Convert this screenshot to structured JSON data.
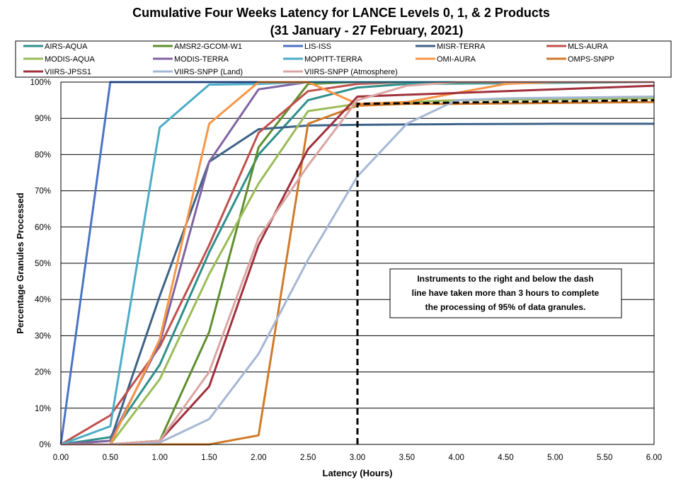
{
  "chart_data": {
    "type": "line",
    "title": "Cumulative Four Weeks Latency  for LANCE Levels 0, 1, & 2 Products",
    "subtitle": "(31 January  -  27 February,  2021)",
    "xlabel": "Latency (Hours)",
    "ylabel": "Percentage Granules Processed",
    "xlim": [
      0,
      6
    ],
    "ylim": [
      0,
      100
    ],
    "x_ticks": [
      "0.00",
      "0.50",
      "1.00",
      "1.50",
      "2.00",
      "2.50",
      "3.00",
      "3.50",
      "4.00",
      "4.50",
      "5.00",
      "5.50",
      "6.00"
    ],
    "y_ticks": [
      "0%",
      "10%",
      "20%",
      "30%",
      "40%",
      "50%",
      "60%",
      "70%",
      "80%",
      "90%",
      "100%"
    ],
    "grid": "horizontal",
    "legend_position": "top",
    "annotation": [
      "Instruments to the right and below the dash",
      "line have taken more than 3 hours to complete",
      "the processing of 95% of data granules."
    ],
    "threshold_line": {
      "x": 3.0,
      "y": 94,
      "x_end": 6.0,
      "y_end": 95,
      "style": "dashed"
    },
    "series": [
      {
        "name": "AIRS-AQUA",
        "color": "#2e8f8a",
        "x": [
          0,
          0.5,
          1,
          1.5,
          2,
          2.5,
          3,
          3.5,
          6
        ],
        "y": [
          0,
          2,
          22,
          53,
          80,
          95,
          98.5,
          99.5,
          100
        ]
      },
      {
        "name": "AMSR2-GCOM-W1",
        "color": "#5f8f2e",
        "x": [
          0,
          0.5,
          1,
          1.5,
          2,
          2.5,
          3,
          3.5,
          6
        ],
        "y": [
          0,
          0,
          1,
          31,
          82,
          99.5,
          100,
          100,
          100
        ]
      },
      {
        "name": "LIS-ISS",
        "color": "#4a74c4",
        "x": [
          0,
          0.5,
          1,
          6
        ],
        "y": [
          0,
          100,
          100,
          100
        ]
      },
      {
        "name": "MISR-TERRA",
        "color": "#3d6287",
        "x": [
          0,
          0.5,
          1,
          1.5,
          2,
          2.5,
          3,
          3.5,
          4,
          5,
          6
        ],
        "y": [
          0,
          1,
          41,
          78,
          87,
          88,
          88.2,
          88.3,
          88.4,
          88.5,
          88.5
        ]
      },
      {
        "name": "MLS-AURA",
        "color": "#c0504d",
        "x": [
          0,
          0.5,
          1,
          1.5,
          2,
          2.5,
          3,
          3.5,
          4,
          6
        ],
        "y": [
          0,
          8,
          27,
          55,
          86,
          97.5,
          99.5,
          100,
          100,
          100
        ]
      },
      {
        "name": "MODIS-AQUA",
        "color": "#9bbb59",
        "x": [
          0,
          0.5,
          1,
          1.5,
          2,
          2.5,
          3,
          3.5,
          4,
          6
        ],
        "y": [
          0,
          0,
          18,
          47,
          72,
          92,
          94,
          94.5,
          95,
          95.5
        ]
      },
      {
        "name": "MODIS-TERRA",
        "color": "#8064a2",
        "x": [
          0,
          0.5,
          1,
          1.5,
          2,
          2.5,
          3,
          6
        ],
        "y": [
          0,
          1,
          28,
          78,
          98,
          100,
          100,
          100
        ]
      },
      {
        "name": "MOPITT-TERRA",
        "color": "#4bacc6",
        "x": [
          0,
          0.5,
          1,
          1.5,
          2,
          2.5,
          6
        ],
        "y": [
          0,
          5,
          87.5,
          99.3,
          99.5,
          100,
          100
        ]
      },
      {
        "name": "OMI-AURA",
        "color": "#f79646",
        "x": [
          0,
          0.5,
          1,
          1.5,
          2,
          2.5,
          3,
          3.5,
          4,
          4.5,
          5,
          6
        ],
        "y": [
          0,
          0,
          29,
          88.5,
          100,
          100,
          94,
          94.5,
          97,
          99.5,
          100,
          100
        ]
      },
      {
        "name": "OMPS-SNPP",
        "color": "#d07a28",
        "x": [
          0,
          0.5,
          1,
          1.5,
          2,
          2.5,
          3,
          3.5,
          4,
          6
        ],
        "y": [
          0,
          0,
          0,
          0,
          2.5,
          88.5,
          93.5,
          94,
          94,
          94.5
        ]
      },
      {
        "name": "VIIRS-JPSS1",
        "color": "#a0303c",
        "x": [
          0,
          0.5,
          1,
          1.5,
          2,
          2.5,
          3,
          3.5,
          4,
          5,
          6
        ],
        "y": [
          0,
          0,
          1,
          16,
          55,
          81.5,
          96,
          96.5,
          97,
          98,
          99
        ]
      },
      {
        "name": "VIIRS-SNPP (Land)",
        "color": "#a6b7d4",
        "x": [
          0,
          0.5,
          1,
          1.5,
          2,
          2.5,
          3,
          3.5,
          4,
          4.5,
          6
        ],
        "y": [
          0,
          0,
          0.5,
          7,
          25,
          51,
          74,
          88.5,
          95,
          95.5,
          96
        ]
      },
      {
        "name": "VIIRS-SNPP (Atmosphere)",
        "color": "#d9a6a3",
        "x": [
          0,
          0.5,
          1,
          1.5,
          2,
          2.5,
          3,
          3.5,
          4,
          6
        ],
        "y": [
          0,
          0,
          1,
          20,
          57,
          77,
          95,
          99,
          100,
          100
        ]
      }
    ]
  }
}
